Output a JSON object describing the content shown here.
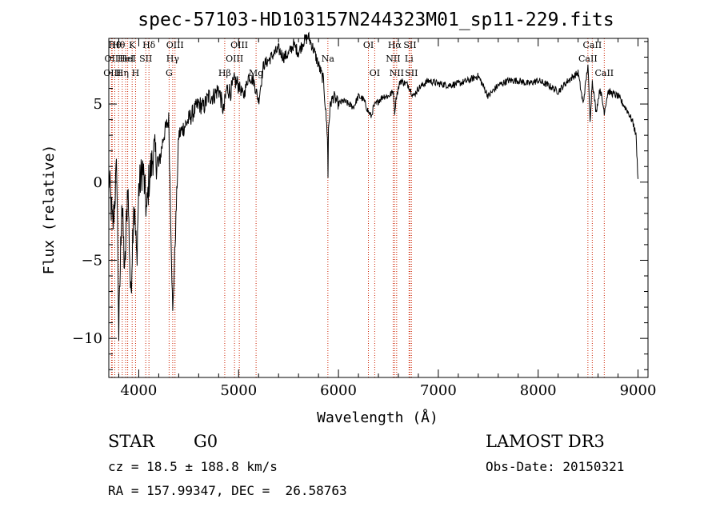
{
  "chart_data": {
    "type": "line",
    "title": "spec-57103-HD103157N244323M01_sp11-229.fits",
    "xlabel": "Wavelength (Å)",
    "ylabel": "Flux (relative)",
    "xlim": [
      3700,
      9100
    ],
    "ylim": [
      -12.5,
      9.2
    ],
    "xticks": [
      4000,
      5000,
      6000,
      7000,
      8000,
      9000
    ],
    "xtick_labels": [
      "4000",
      "5000",
      "6000",
      "7000",
      "8000",
      "9000"
    ],
    "yticks": [
      -10,
      -5,
      0,
      5
    ],
    "ytick_labels": [
      "−10",
      "−5",
      "0",
      "5"
    ],
    "grid": false,
    "series": [
      {
        "name": "spectrum",
        "x": [
          3700,
          3740,
          3780,
          3800,
          3830,
          3860,
          3890,
          3920,
          3950,
          3980,
          4000,
          4040,
          4080,
          4100,
          4150,
          4200,
          4250,
          4300,
          4340,
          4400,
          4450,
          4500,
          4550,
          4600,
          4650,
          4700,
          4750,
          4800,
          4850,
          4880,
          4920,
          4960,
          5000,
          5050,
          5100,
          5150,
          5200,
          5250,
          5300,
          5350,
          5400,
          5450,
          5500,
          5550,
          5600,
          5650,
          5700,
          5750,
          5800,
          5850,
          5890,
          5895,
          5900,
          5920,
          5950,
          6000,
          6050,
          6100,
          6150,
          6200,
          6250,
          6300,
          6330,
          6350,
          6400,
          6450,
          6500,
          6550,
          6563,
          6580,
          6620,
          6700,
          6750,
          6800,
          6900,
          7000,
          7100,
          7200,
          7300,
          7400,
          7500,
          7600,
          7700,
          7800,
          7900,
          8000,
          8100,
          8200,
          8300,
          8400,
          8450,
          8498,
          8520,
          8542,
          8580,
          8620,
          8662,
          8700,
          8800,
          8900,
          8950,
          8980,
          9000
        ],
        "values": [
          0.5,
          -3,
          1,
          -9.8,
          -1,
          -6,
          0,
          -7.5,
          -1,
          -5,
          -0.5,
          1,
          -2,
          0,
          2,
          1,
          3,
          4,
          -8.5,
          3,
          3.5,
          4,
          4.5,
          5,
          4.8,
          5.5,
          5.5,
          6,
          4.5,
          6,
          5.8,
          6.5,
          6.2,
          5.5,
          6.8,
          6.5,
          5.2,
          7.5,
          7.8,
          8.2,
          8.5,
          8,
          8.2,
          8.8,
          8.3,
          9,
          9.3,
          8.5,
          7.5,
          6.5,
          3,
          0.2,
          3.5,
          5,
          5.5,
          5,
          5.2,
          5,
          4.8,
          5.5,
          5.3,
          4.5,
          4.2,
          4.8,
          5.2,
          5.5,
          5.5,
          5.8,
          4.5,
          5.5,
          6.5,
          6.2,
          5.5,
          6,
          6.5,
          6.3,
          6.2,
          6.3,
          6.5,
          6.8,
          5.5,
          6.2,
          6.5,
          6.5,
          6.3,
          6.5,
          6.2,
          5.8,
          6.5,
          7,
          5,
          7.5,
          4,
          6.5,
          4.5,
          6,
          4.5,
          5.8,
          5.5,
          4.5,
          3.8,
          3,
          0.2
        ]
      }
    ],
    "spectral_lines": [
      {
        "x": 3727,
        "label": "OII",
        "row": 1
      },
      {
        "x": 3734,
        "label": "OIII",
        "row": 2
      },
      {
        "x": 3760,
        "label": "Hθ",
        "row": 0
      },
      {
        "x": 3798,
        "label": "Hθ",
        "row": 0
      },
      {
        "x": 3835,
        "label": "Hη",
        "row": 2
      },
      {
        "x": 3869,
        "label": "HeI",
        "row": 1
      },
      {
        "x": 3889,
        "label": "HeI",
        "row": 1
      },
      {
        "x": 3934,
        "label": "K",
        "row": 0
      },
      {
        "x": 3968,
        "label": "H",
        "row": 2
      },
      {
        "x": 4070,
        "label": "SII",
        "row": 1
      },
      {
        "x": 4102,
        "label": "Hδ",
        "row": 0
      },
      {
        "x": 4304,
        "label": "G",
        "row": 2
      },
      {
        "x": 4340,
        "label": "Hγ",
        "row": 1
      },
      {
        "x": 4363,
        "label": "OIII",
        "row": 0
      },
      {
        "x": 4861,
        "label": "Hβ",
        "row": 2
      },
      {
        "x": 4959,
        "label": "OIII",
        "row": 1
      },
      {
        "x": 5007,
        "label": "OIII",
        "row": 0
      },
      {
        "x": 5175,
        "label": "Mg",
        "row": 2
      },
      {
        "x": 5894,
        "label": "Na",
        "row": 1
      },
      {
        "x": 6300,
        "label": "OI",
        "row": 0
      },
      {
        "x": 6363,
        "label": "OI",
        "row": 2
      },
      {
        "x": 6548,
        "label": "NII",
        "row": 1
      },
      {
        "x": 6563,
        "label": "Hα",
        "row": 0
      },
      {
        "x": 6583,
        "label": "NII",
        "row": 2
      },
      {
        "x": 6707,
        "label": "Li",
        "row": 1
      },
      {
        "x": 6716,
        "label": "SII",
        "row": 0
      },
      {
        "x": 6731,
        "label": "SII",
        "row": 2
      },
      {
        "x": 8498,
        "label": "CaII",
        "row": 1
      },
      {
        "x": 8542,
        "label": "CaII",
        "row": 0
      },
      {
        "x": 8662,
        "label": "CaII",
        "row": 2
      }
    ]
  },
  "info": {
    "class": "STAR",
    "subclass": "G0",
    "survey": "LAMOST DR3",
    "redshift": "cz = 18.5 ± 188.8 km/s",
    "obs_date": "Obs-Date: 20150321",
    "coords": "RA = 157.99347, DEC =  26.58763"
  },
  "colors": {
    "line": "#000000",
    "marker_lines": "#cc2200"
  }
}
